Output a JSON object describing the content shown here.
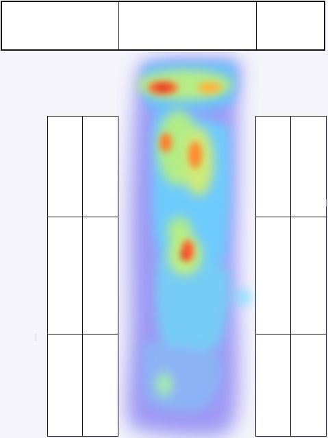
{
  "header": {
    "cells": [
      "",
      "",
      ""
    ]
  },
  "left_panel": {
    "cells": [
      "",
      "",
      "",
      "",
      "",
      ""
    ]
  },
  "right_panel": {
    "cells": [
      "",
      "",
      "",
      "",
      "",
      ""
    ]
  },
  "heatmap": {
    "colors": {
      "cold": "#7f7ff0",
      "cool": "#5ec7ff",
      "mid": "#7fff7f",
      "warm": "#ffd34d",
      "hot": "#ff4a2a",
      "background": "#f4f4fa"
    }
  }
}
